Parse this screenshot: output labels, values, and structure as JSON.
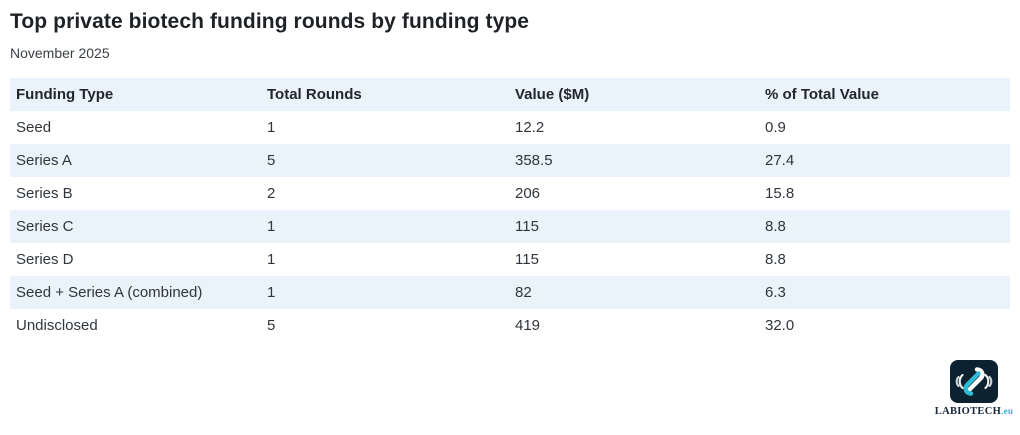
{
  "title": "Top private biotech funding rounds by funding type",
  "subtitle": "November 2025",
  "table": {
    "columns": [
      "Funding Type",
      "Total Rounds",
      "Value ($M)",
      "% of Total Value"
    ],
    "rows": [
      [
        "Seed",
        "1",
        "12.2",
        "0.9"
      ],
      [
        "Series A",
        "5",
        "358.5",
        "27.4"
      ],
      [
        "Series B",
        "2",
        "206",
        "15.8"
      ],
      [
        "Series C",
        "1",
        "115",
        "8.8"
      ],
      [
        "Series D",
        "1",
        "115",
        "8.8"
      ],
      [
        "Seed + Series A (combined)",
        "1",
        "82",
        "6.3"
      ],
      [
        "Undisclosed",
        "5",
        "419",
        "32.0"
      ]
    ]
  },
  "chart_data": {
    "type": "table",
    "title": "Top private biotech funding rounds by funding type",
    "subtitle": "November 2025",
    "columns": [
      "Funding Type",
      "Total Rounds",
      "Value ($M)",
      "% of Total Value"
    ],
    "rows": [
      {
        "funding_type": "Seed",
        "total_rounds": 1,
        "value_m": 12.2,
        "pct_of_total_value": 0.9
      },
      {
        "funding_type": "Series A",
        "total_rounds": 5,
        "value_m": 358.5,
        "pct_of_total_value": 27.4
      },
      {
        "funding_type": "Series B",
        "total_rounds": 2,
        "value_m": 206,
        "pct_of_total_value": 15.8
      },
      {
        "funding_type": "Series C",
        "total_rounds": 1,
        "value_m": 115,
        "pct_of_total_value": 8.8
      },
      {
        "funding_type": "Series D",
        "total_rounds": 1,
        "value_m": 115,
        "pct_of_total_value": 8.8
      },
      {
        "funding_type": "Seed + Series A (combined)",
        "total_rounds": 1,
        "value_m": 82,
        "pct_of_total_value": 6.3
      },
      {
        "funding_type": "Undisclosed",
        "total_rounds": 5,
        "value_m": 419,
        "pct_of_total_value": 32.0
      }
    ],
    "layout": {
      "stripe_style": "alternating",
      "legend": "none",
      "grid": "off"
    }
  },
  "logo": {
    "brand": "LABIOTECH",
    "tld": ".eu"
  },
  "colors": {
    "row_stripe": "#eaf2fb",
    "text_dark": "#22272c",
    "logo_background": "#0c2231",
    "logo_teal": "#2fbcd4",
    "logo_navy": "#16283a",
    "logo_tld_cyan": "#2eb5d6"
  }
}
